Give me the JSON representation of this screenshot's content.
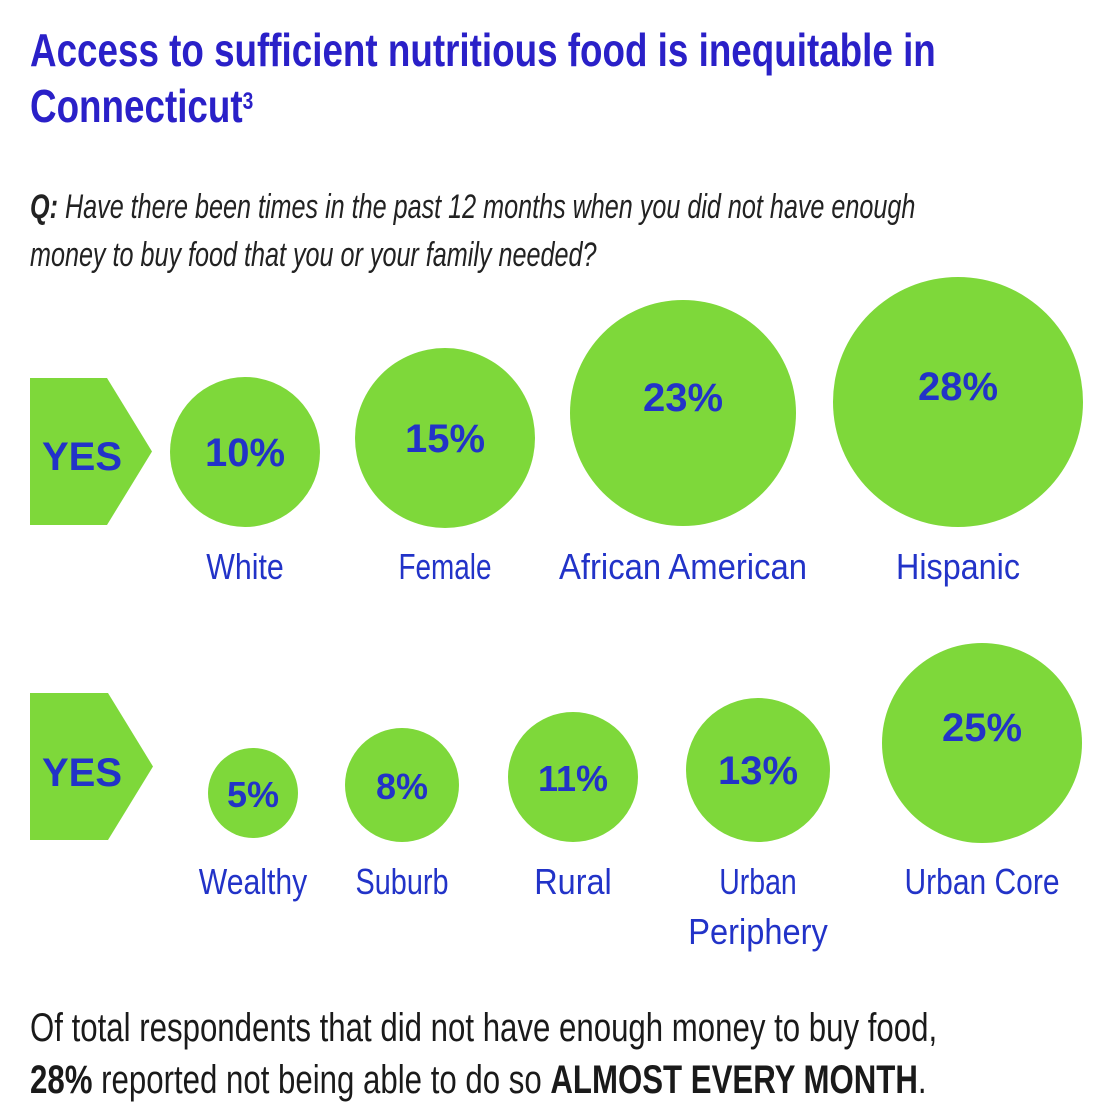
{
  "header": {
    "title": "Access to sufficient nutritious food is inequitable in",
    "title_line2": "Connecticut",
    "footnote": "3",
    "question_prefix": "Q:",
    "question_line1": "Have there been times in the past 12 months when you did not have enough",
    "question_line2": "money to buy food that you or your family needed?"
  },
  "colors": {
    "accent": "#7ed83a",
    "text": "#2233c8",
    "title": "#2a20c8"
  },
  "chart_data": [
    {
      "type": "bubble",
      "row_label": "YES",
      "categories": [
        "White",
        "Female",
        "African American",
        "Hispanic"
      ],
      "values": [
        10,
        15,
        23,
        28
      ],
      "value_labels": [
        "10%",
        "15%",
        "23%",
        "28%"
      ],
      "unit": "%"
    },
    {
      "type": "bubble",
      "row_label": "YES",
      "categories": [
        "Wealthy",
        "Suburb",
        "Rural",
        "Urban Periphery",
        "Urban Core"
      ],
      "category_lines": [
        [
          "Wealthy"
        ],
        [
          "Suburb"
        ],
        [
          "Rural"
        ],
        [
          "Urban",
          "Periphery"
        ],
        [
          "Urban Core"
        ]
      ],
      "values": [
        5,
        8,
        11,
        13,
        25
      ],
      "value_labels": [
        "5%",
        "8%",
        "11%",
        "13%",
        "25%"
      ],
      "unit": "%"
    }
  ],
  "footer": {
    "line1": "Of total respondents that did not have enough money to buy food,",
    "highlight": "28%",
    "line2_mid": " reported not being able to do so ",
    "emphasis": "ALMOST EVERY MONTH",
    "end": "."
  }
}
